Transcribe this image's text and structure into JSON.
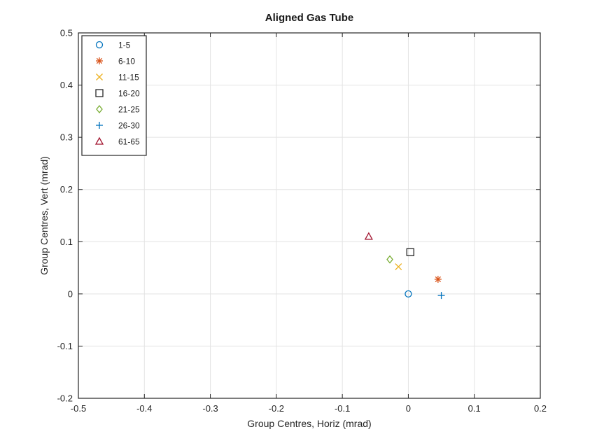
{
  "chart_data": {
    "type": "scatter",
    "title": "Aligned Gas Tube",
    "xlabel": "Group Centres, Horiz (mrad)",
    "ylabel": "Group Centres, Vert (mrad)",
    "xlim": [
      -0.5,
      0.2
    ],
    "ylim": [
      -0.2,
      0.5
    ],
    "xticks": [
      -0.5,
      -0.4,
      -0.3,
      -0.2,
      -0.1,
      0,
      0.1,
      0.2
    ],
    "xtick_labels": [
      "-0.5",
      "-0.4",
      "-0.3",
      "-0.2",
      "-0.1",
      "0",
      "0.1",
      "0.2"
    ],
    "yticks": [
      -0.2,
      -0.1,
      0,
      0.1,
      0.2,
      0.3,
      0.4,
      0.5
    ],
    "ytick_labels": [
      "-0.2",
      "-0.1",
      "0",
      "0.1",
      "0.2",
      "0.3",
      "0.4",
      "0.5"
    ],
    "grid": true,
    "legend_position": "top-left",
    "series": [
      {
        "name": "1-5",
        "marker": "circle",
        "color": "#0072BD",
        "x": 0.0,
        "y": 0.0
      },
      {
        "name": "6-10",
        "marker": "asterisk",
        "color": "#D95319",
        "x": 0.045,
        "y": 0.028
      },
      {
        "name": "11-15",
        "marker": "cross",
        "color": "#EDB120",
        "x": -0.015,
        "y": 0.052
      },
      {
        "name": "16-20",
        "marker": "square",
        "color": "#262626",
        "x": 0.003,
        "y": 0.08
      },
      {
        "name": "21-25",
        "marker": "diamond",
        "color": "#77AC30",
        "x": -0.028,
        "y": 0.066
      },
      {
        "name": "26-30",
        "marker": "plus",
        "color": "#0072BD",
        "x": 0.05,
        "y": -0.003
      },
      {
        "name": "61-65",
        "marker": "triangle",
        "color": "#A2142F",
        "x": -0.06,
        "y": 0.11
      }
    ]
  }
}
